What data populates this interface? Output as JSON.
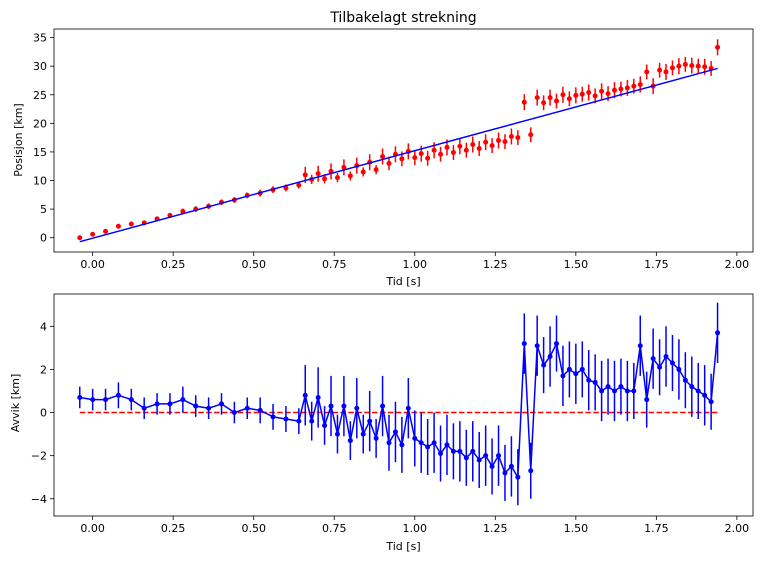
{
  "chart_data": [
    {
      "type": "scatter",
      "title": "Tilbakelagt strekning",
      "xlabel": "Tid [s]",
      "ylabel": "Posisjon [km]",
      "xlim": [
        -0.12,
        2.05
      ],
      "ylim": [
        -2.5,
        36.5
      ],
      "xticks": [
        0.0,
        0.25,
        0.5,
        0.75,
        1.0,
        1.25,
        1.5,
        1.75,
        2.0
      ],
      "xtick_labels": [
        "0.00",
        "0.25",
        "0.50",
        "0.75",
        "1.00",
        "1.25",
        "1.50",
        "1.75",
        "2.00"
      ],
      "yticks": [
        0,
        5,
        10,
        15,
        20,
        25,
        30,
        35
      ],
      "ytick_labels": [
        "0",
        "5",
        "10",
        "15",
        "20",
        "25",
        "30",
        "35"
      ],
      "grid": false,
      "series": [
        {
          "kind": "errorbar-points",
          "color": "#ff0000",
          "x": [
            -0.04,
            0.0,
            0.04,
            0.08,
            0.12,
            0.16,
            0.2,
            0.24,
            0.28,
            0.32,
            0.36,
            0.4,
            0.44,
            0.48,
            0.52,
            0.56,
            0.6,
            0.64,
            0.66,
            0.68,
            0.7,
            0.72,
            0.74,
            0.76,
            0.78,
            0.8,
            0.82,
            0.84,
            0.86,
            0.88,
            0.9,
            0.92,
            0.94,
            0.96,
            0.98,
            1.0,
            1.02,
            1.04,
            1.06,
            1.08,
            1.1,
            1.12,
            1.14,
            1.16,
            1.18,
            1.2,
            1.22,
            1.24,
            1.26,
            1.28,
            1.3,
            1.32,
            1.34,
            1.36,
            1.38,
            1.4,
            1.42,
            1.44,
            1.46,
            1.48,
            1.5,
            1.52,
            1.54,
            1.56,
            1.58,
            1.6,
            1.62,
            1.64,
            1.66,
            1.68,
            1.7,
            1.72,
            1.74,
            1.76,
            1.78,
            1.8,
            1.82,
            1.84,
            1.86,
            1.88,
            1.9,
            1.92,
            1.94
          ],
          "y": [
            0.0,
            0.6,
            1.1,
            2.0,
            2.4,
            2.6,
            3.3,
            3.9,
            4.6,
            5.0,
            5.5,
            6.2,
            6.6,
            7.4,
            7.8,
            8.4,
            8.7,
            9.2,
            11.0,
            10.2,
            11.2,
            10.3,
            11.6,
            10.5,
            12.3,
            10.8,
            12.6,
            11.5,
            13.2,
            11.9,
            14.2,
            13.0,
            14.6,
            13.8,
            15.1,
            14.0,
            14.7,
            13.9,
            15.3,
            14.6,
            15.8,
            14.9,
            16.0,
            15.3,
            16.3,
            15.6,
            16.7,
            16.1,
            17.0,
            16.8,
            17.7,
            17.5,
            23.7,
            18.0,
            24.5,
            23.6,
            24.5,
            23.9,
            25.0,
            24.3,
            24.9,
            25.1,
            25.4,
            24.8,
            25.6,
            25.2,
            25.8,
            26.0,
            26.2,
            26.5,
            26.8,
            29.0,
            26.5,
            29.3,
            29.0,
            29.7,
            30.0,
            30.3,
            30.1,
            30.0,
            29.9,
            29.6,
            33.3
          ],
          "yerr": [
            0.3,
            0.3,
            0.3,
            0.4,
            0.4,
            0.4,
            0.4,
            0.4,
            0.5,
            0.5,
            0.5,
            0.5,
            0.5,
            0.5,
            0.6,
            0.6,
            0.6,
            0.6,
            1.4,
            0.8,
            1.4,
            0.8,
            1.4,
            0.8,
            1.4,
            0.8,
            1.4,
            0.8,
            1.4,
            0.8,
            1.4,
            1.2,
            1.4,
            1.3,
            1.4,
            1.3,
            1.4,
            1.3,
            1.4,
            1.3,
            1.4,
            1.3,
            1.4,
            1.3,
            1.4,
            1.3,
            1.4,
            1.3,
            1.4,
            1.3,
            1.4,
            1.3,
            1.4,
            1.3,
            1.4,
            1.3,
            1.4,
            1.3,
            1.4,
            1.3,
            1.4,
            1.3,
            1.4,
            1.3,
            1.4,
            1.3,
            1.4,
            1.3,
            1.4,
            1.3,
            1.4,
            1.3,
            1.4,
            1.3,
            1.4,
            1.3,
            1.4,
            1.3,
            1.4,
            1.3,
            1.4,
            1.3,
            1.4
          ]
        },
        {
          "kind": "line",
          "color": "#0000ff",
          "x": [
            -0.04,
            1.94
          ],
          "y": [
            -0.7,
            29.6
          ]
        }
      ]
    },
    {
      "type": "line",
      "title": "",
      "xlabel": "Tid [s]",
      "ylabel": "Avvik [km]",
      "xlim": [
        -0.12,
        2.05
      ],
      "ylim": [
        -4.8,
        5.5
      ],
      "xticks": [
        0.0,
        0.25,
        0.5,
        0.75,
        1.0,
        1.25,
        1.5,
        1.75,
        2.0
      ],
      "xtick_labels": [
        "0.00",
        "0.25",
        "0.50",
        "0.75",
        "1.00",
        "1.25",
        "1.50",
        "1.75",
        "2.00"
      ],
      "yticks": [
        -4,
        -2,
        0,
        2,
        4
      ],
      "ytick_labels": [
        "−4",
        "−2",
        "0",
        "2",
        "4"
      ],
      "grid": false,
      "reference_line": {
        "y": 0,
        "color": "#ff0000",
        "style": "dashed"
      },
      "series": [
        {
          "kind": "errorbar-line",
          "color": "#0000ff",
          "x": [
            -0.04,
            0.0,
            0.04,
            0.08,
            0.12,
            0.16,
            0.2,
            0.24,
            0.28,
            0.32,
            0.36,
            0.4,
            0.44,
            0.48,
            0.52,
            0.56,
            0.6,
            0.64,
            0.66,
            0.68,
            0.7,
            0.72,
            0.74,
            0.76,
            0.78,
            0.8,
            0.82,
            0.84,
            0.86,
            0.88,
            0.9,
            0.92,
            0.94,
            0.96,
            0.98,
            1.0,
            1.02,
            1.04,
            1.06,
            1.08,
            1.1,
            1.12,
            1.14,
            1.16,
            1.18,
            1.2,
            1.22,
            1.24,
            1.26,
            1.28,
            1.3,
            1.32,
            1.34,
            1.36,
            1.38,
            1.4,
            1.42,
            1.44,
            1.46,
            1.48,
            1.5,
            1.52,
            1.54,
            1.56,
            1.58,
            1.6,
            1.62,
            1.64,
            1.66,
            1.68,
            1.7,
            1.72,
            1.74,
            1.76,
            1.78,
            1.8,
            1.82,
            1.84,
            1.86,
            1.88,
            1.9,
            1.92,
            1.94
          ],
          "y": [
            0.7,
            0.6,
            0.6,
            0.8,
            0.6,
            0.2,
            0.4,
            0.4,
            0.6,
            0.3,
            0.2,
            0.4,
            0.0,
            0.2,
            0.1,
            -0.2,
            -0.3,
            -0.4,
            0.8,
            -0.4,
            0.7,
            -0.6,
            0.3,
            -1.0,
            0.3,
            -1.3,
            0.2,
            -1.0,
            -0.4,
            -1.2,
            0.3,
            -1.4,
            -0.9,
            -1.5,
            0.2,
            -1.2,
            -1.4,
            -1.6,
            -1.4,
            -1.9,
            -1.5,
            -1.8,
            -1.8,
            -2.1,
            -1.8,
            -2.2,
            -2.0,
            -2.5,
            -2.0,
            -2.8,
            -2.5,
            -3.0,
            3.2,
            -2.7,
            3.1,
            2.2,
            2.6,
            3.2,
            1.7,
            2.0,
            1.8,
            2.0,
            1.5,
            1.4,
            1.0,
            1.2,
            1.0,
            1.2,
            1.0,
            1.0,
            3.1,
            0.6,
            2.5,
            2.1,
            2.6,
            2.3,
            2.0,
            1.5,
            1.2,
            1.0,
            0.8,
            0.5,
            3.7
          ],
          "yerr": [
            0.5,
            0.5,
            0.5,
            0.6,
            0.5,
            0.5,
            0.5,
            0.5,
            0.6,
            0.5,
            0.5,
            0.5,
            0.5,
            0.5,
            0.6,
            0.6,
            0.6,
            0.6,
            1.4,
            0.9,
            1.4,
            0.9,
            1.4,
            0.9,
            1.4,
            0.9,
            1.4,
            0.9,
            1.4,
            0.9,
            1.4,
            1.3,
            1.4,
            1.3,
            1.4,
            1.3,
            1.4,
            1.3,
            1.4,
            1.3,
            1.4,
            1.3,
            1.4,
            1.3,
            1.4,
            1.3,
            1.4,
            1.3,
            1.4,
            1.3,
            1.4,
            1.3,
            1.4,
            1.3,
            1.4,
            1.3,
            1.4,
            1.3,
            1.4,
            1.3,
            1.4,
            1.3,
            1.4,
            1.3,
            1.4,
            1.3,
            1.4,
            1.3,
            1.4,
            1.3,
            1.4,
            1.3,
            1.4,
            1.3,
            1.4,
            1.3,
            1.4,
            1.3,
            1.4,
            1.3,
            1.4,
            1.3,
            1.4
          ]
        }
      ]
    }
  ]
}
